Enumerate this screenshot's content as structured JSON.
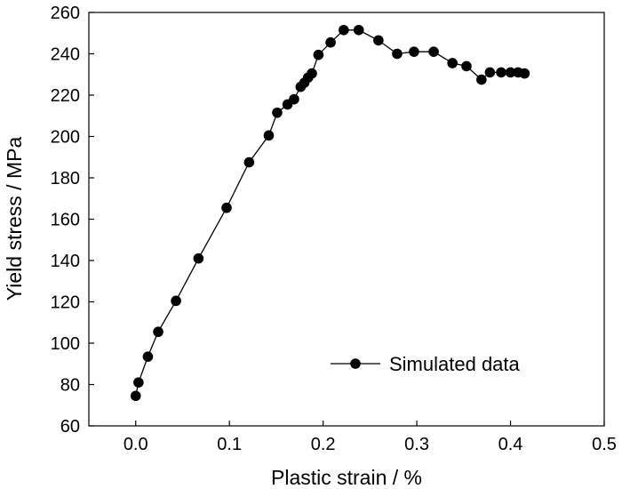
{
  "chart_data": {
    "type": "line",
    "title": "",
    "xlabel": "Plastic strain / %",
    "ylabel": "Yield stress / MPa",
    "xlim": [
      -0.05,
      0.5
    ],
    "ylim": [
      60,
      260
    ],
    "xticks": [
      0.0,
      0.1,
      0.2,
      0.3,
      0.4,
      0.5
    ],
    "xtick_labels": [
      "0.0",
      "0.1",
      "0.2",
      "0.3",
      "0.4",
      "0.5"
    ],
    "yticks": [
      60,
      80,
      100,
      120,
      140,
      160,
      180,
      200,
      220,
      240,
      260
    ],
    "ytick_labels": [
      "60",
      "80",
      "100",
      "120",
      "140",
      "160",
      "180",
      "200",
      "220",
      "240",
      "260"
    ],
    "grid": false,
    "legend_position": "lower-right",
    "series": [
      {
        "name": "Simulated data",
        "marker": "circle",
        "color": "#000000",
        "points": [
          [
            0.0,
            74.5
          ],
          [
            0.003,
            81.0
          ],
          [
            0.013,
            93.5
          ],
          [
            0.024,
            105.5
          ],
          [
            0.043,
            120.5
          ],
          [
            0.067,
            141.0
          ],
          [
            0.097,
            165.5
          ],
          [
            0.121,
            187.5
          ],
          [
            0.142,
            200.5
          ],
          [
            0.151,
            211.5
          ],
          [
            0.162,
            215.5
          ],
          [
            0.169,
            218.0
          ],
          [
            0.176,
            224.0
          ],
          [
            0.18,
            226.0
          ],
          [
            0.184,
            228.5
          ],
          [
            0.188,
            230.5
          ],
          [
            0.195,
            239.5
          ],
          [
            0.208,
            245.5
          ],
          [
            0.222,
            251.5
          ],
          [
            0.238,
            251.5
          ],
          [
            0.259,
            246.5
          ],
          [
            0.279,
            240.0
          ],
          [
            0.297,
            241.0
          ],
          [
            0.318,
            241.0
          ],
          [
            0.338,
            235.5
          ],
          [
            0.353,
            234.0
          ],
          [
            0.369,
            227.5
          ],
          [
            0.378,
            231.0
          ],
          [
            0.39,
            231.0
          ],
          [
            0.4,
            231.0
          ],
          [
            0.408,
            231.0
          ],
          [
            0.415,
            230.5
          ]
        ]
      }
    ]
  }
}
